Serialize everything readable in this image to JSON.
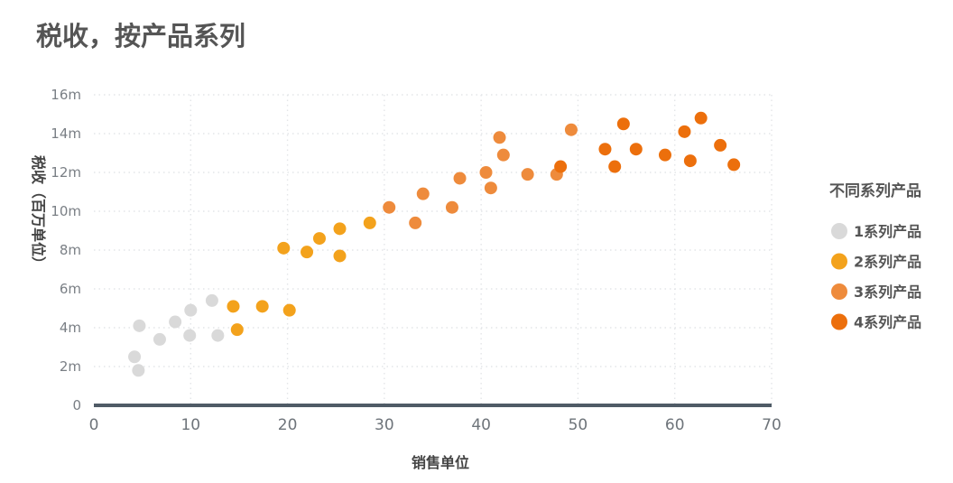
{
  "chart_data": {
    "type": "scatter",
    "title": "税收，按产品系列",
    "xlabel": "销售单位",
    "ylabel": "税收（百万单位）",
    "xlim": [
      0,
      70
    ],
    "ylim": [
      0,
      16
    ],
    "x_ticks": [
      0,
      10,
      20,
      30,
      40,
      50,
      60,
      70
    ],
    "y_ticks": [
      0,
      2,
      4,
      6,
      8,
      10,
      12,
      14,
      16
    ],
    "y_tick_labels": [
      "0",
      "2m",
      "4m",
      "6m",
      "8m",
      "10m",
      "12m",
      "14m",
      "16m"
    ],
    "grid": true,
    "legend": {
      "title": "不同系列产品",
      "position": "right"
    },
    "series": [
      {
        "name": "1系列产品",
        "color": "#d9d9d9",
        "points": [
          [
            4.2,
            2.5
          ],
          [
            4.6,
            1.8
          ],
          [
            4.7,
            4.1
          ],
          [
            6.8,
            3.4
          ],
          [
            8.4,
            4.3
          ],
          [
            9.9,
            3.6
          ],
          [
            10.0,
            4.9
          ],
          [
            12.2,
            5.4
          ],
          [
            12.8,
            3.6
          ]
        ]
      },
      {
        "name": "2系列产品",
        "color": "#f3a21c",
        "points": [
          [
            14.4,
            5.1
          ],
          [
            14.8,
            3.9
          ],
          [
            17.4,
            5.1
          ],
          [
            19.6,
            8.1
          ],
          [
            20.2,
            4.9
          ],
          [
            22.0,
            7.9
          ],
          [
            23.3,
            8.6
          ],
          [
            25.4,
            9.1
          ],
          [
            25.4,
            7.7
          ],
          [
            28.5,
            9.4
          ]
        ]
      },
      {
        "name": "3系列产品",
        "color": "#ee8b3c",
        "points": [
          [
            30.5,
            10.2
          ],
          [
            33.2,
            9.4
          ],
          [
            34.0,
            10.9
          ],
          [
            37.0,
            10.2
          ],
          [
            37.8,
            11.7
          ],
          [
            40.5,
            12.0
          ],
          [
            41.0,
            11.2
          ],
          [
            41.9,
            13.8
          ],
          [
            42.3,
            12.9
          ],
          [
            44.8,
            11.9
          ],
          [
            47.8,
            11.9
          ],
          [
            49.3,
            14.2
          ]
        ]
      },
      {
        "name": "4系列产品",
        "color": "#ec6f0c",
        "points": [
          [
            48.2,
            12.3
          ],
          [
            52.8,
            13.2
          ],
          [
            53.8,
            12.3
          ],
          [
            54.7,
            14.5
          ],
          [
            56.0,
            13.2
          ],
          [
            59.0,
            12.9
          ],
          [
            61.0,
            14.1
          ],
          [
            61.6,
            12.6
          ],
          [
            62.7,
            14.8
          ],
          [
            64.7,
            13.4
          ],
          [
            66.1,
            12.4
          ]
        ]
      }
    ]
  }
}
